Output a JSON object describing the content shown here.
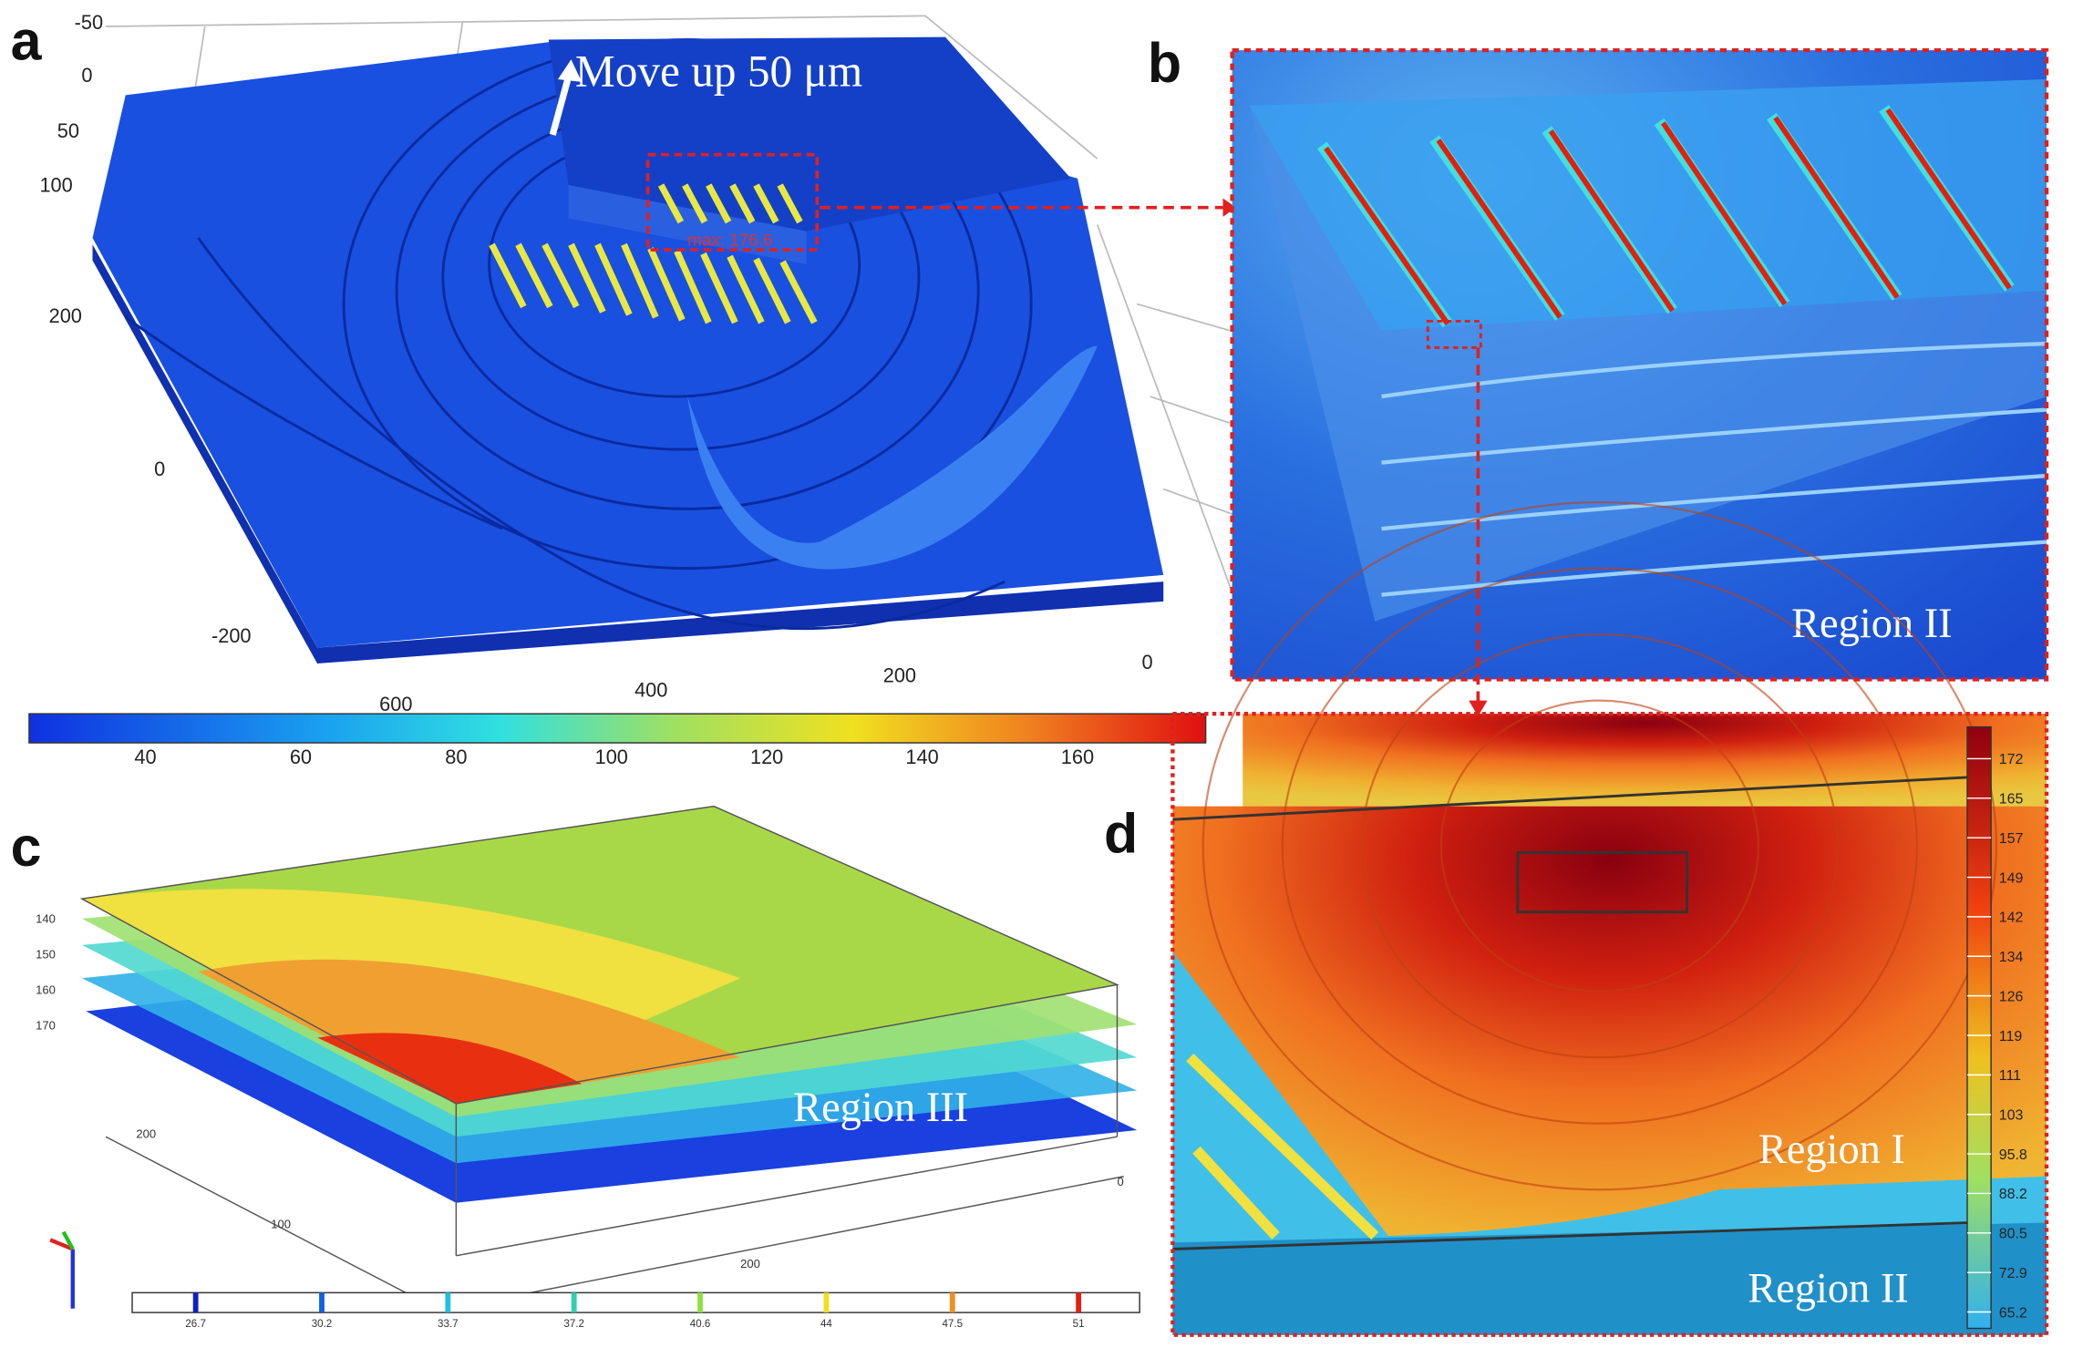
{
  "panels": [
    {
      "label": "a",
      "annotation": "Move up 50 μm",
      "max_label": "max: 176.6",
      "axis_labels": [
        "-50",
        "0",
        "50",
        "100",
        "200",
        "0",
        "-200",
        "600",
        "400",
        "200",
        "0"
      ],
      "colorbar_ticks": [
        "40",
        "60",
        "80",
        "100",
        "120",
        "140",
        "160"
      ]
    },
    {
      "label": "b",
      "region": "Region II"
    },
    {
      "label": "c",
      "region": "Region III",
      "axis_labels": [
        "140",
        "150",
        "160",
        "170",
        "200",
        "100",
        "200",
        "0"
      ],
      "colorbar_ticks": [
        "26.7",
        "30.2",
        "33.7",
        "37.2",
        "40.6",
        "44",
        "47.5",
        "51"
      ]
    },
    {
      "label": "d",
      "regions": [
        "Region I",
        "Region II"
      ],
      "colorbar_ticks": [
        "172",
        "165",
        "157",
        "149",
        "142",
        "134",
        "126",
        "119",
        "111",
        "103",
        "95.8",
        "88.2",
        "80.5",
        "72.9",
        "65.2"
      ]
    }
  ]
}
